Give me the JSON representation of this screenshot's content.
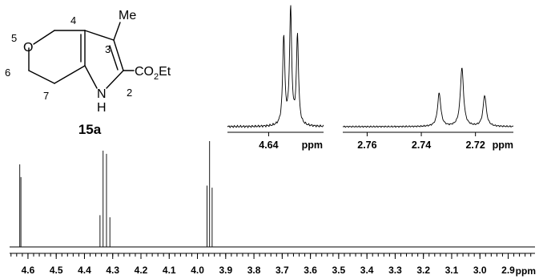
{
  "molecule": {
    "compound_label": "15a",
    "atoms": {
      "oxygen": "O",
      "nitrogen": "N",
      "hydrogen": "H",
      "methyl": "Me"
    },
    "ester": {
      "prefix": "CO",
      "subscript": "2",
      "suffix": "Et"
    },
    "position_numbers": [
      "2",
      "3",
      "4",
      "5",
      "6",
      "7"
    ]
  },
  "chart_data": [
    {
      "type": "line",
      "title": "",
      "xlabel": "ppm",
      "xlim": [
        4.665,
        2.805
      ],
      "x_reversed": true,
      "ticks": [
        "4.6",
        "4.5",
        "4.4",
        "4.3",
        "4.2",
        "4.1",
        "4.0",
        "3.9",
        "3.8",
        "3.7",
        "3.6",
        "3.5",
        "3.4",
        "3.3",
        "3.2",
        "3.1",
        "3.0",
        "2.9"
      ],
      "peaks": [
        {
          "ppm": 4.629,
          "height": 0.78
        },
        {
          "ppm": 4.625,
          "height": 0.66
        },
        {
          "ppm": 4.345,
          "height": 0.3
        },
        {
          "ppm": 4.334,
          "height": 0.91
        },
        {
          "ppm": 4.322,
          "height": 0.88
        },
        {
          "ppm": 4.31,
          "height": 0.28
        },
        {
          "ppm": 3.966,
          "height": 0.58
        },
        {
          "ppm": 3.957,
          "height": 1.0
        },
        {
          "ppm": 3.948,
          "height": 0.56
        },
        {
          "ppm": 2.733,
          "height": 0.14
        },
        {
          "ppm": 2.725,
          "height": 0.26
        },
        {
          "ppm": 2.717,
          "height": 0.13
        }
      ]
    },
    {
      "type": "line",
      "title": "",
      "xlabel": "ppm",
      "xlim": [
        4.655,
        4.62
      ],
      "x_reversed": true,
      "ticks": [
        "4.64"
      ],
      "peaks": [
        {
          "ppm": 4.6345,
          "height": 0.77
        },
        {
          "ppm": 4.632,
          "height": 1.0
        },
        {
          "ppm": 4.6295,
          "height": 0.77
        }
      ]
    },
    {
      "type": "line",
      "title": "",
      "xlabel": "ppm",
      "xlim": [
        2.769,
        2.706
      ],
      "x_reversed": true,
      "ticks": [
        "2.76",
        "2.74",
        "2.72"
      ],
      "peaks": [
        {
          "ppm": 2.7334,
          "height": 0.46
        },
        {
          "ppm": 2.725,
          "height": 0.81
        },
        {
          "ppm": 2.7166,
          "height": 0.43
        }
      ]
    }
  ]
}
